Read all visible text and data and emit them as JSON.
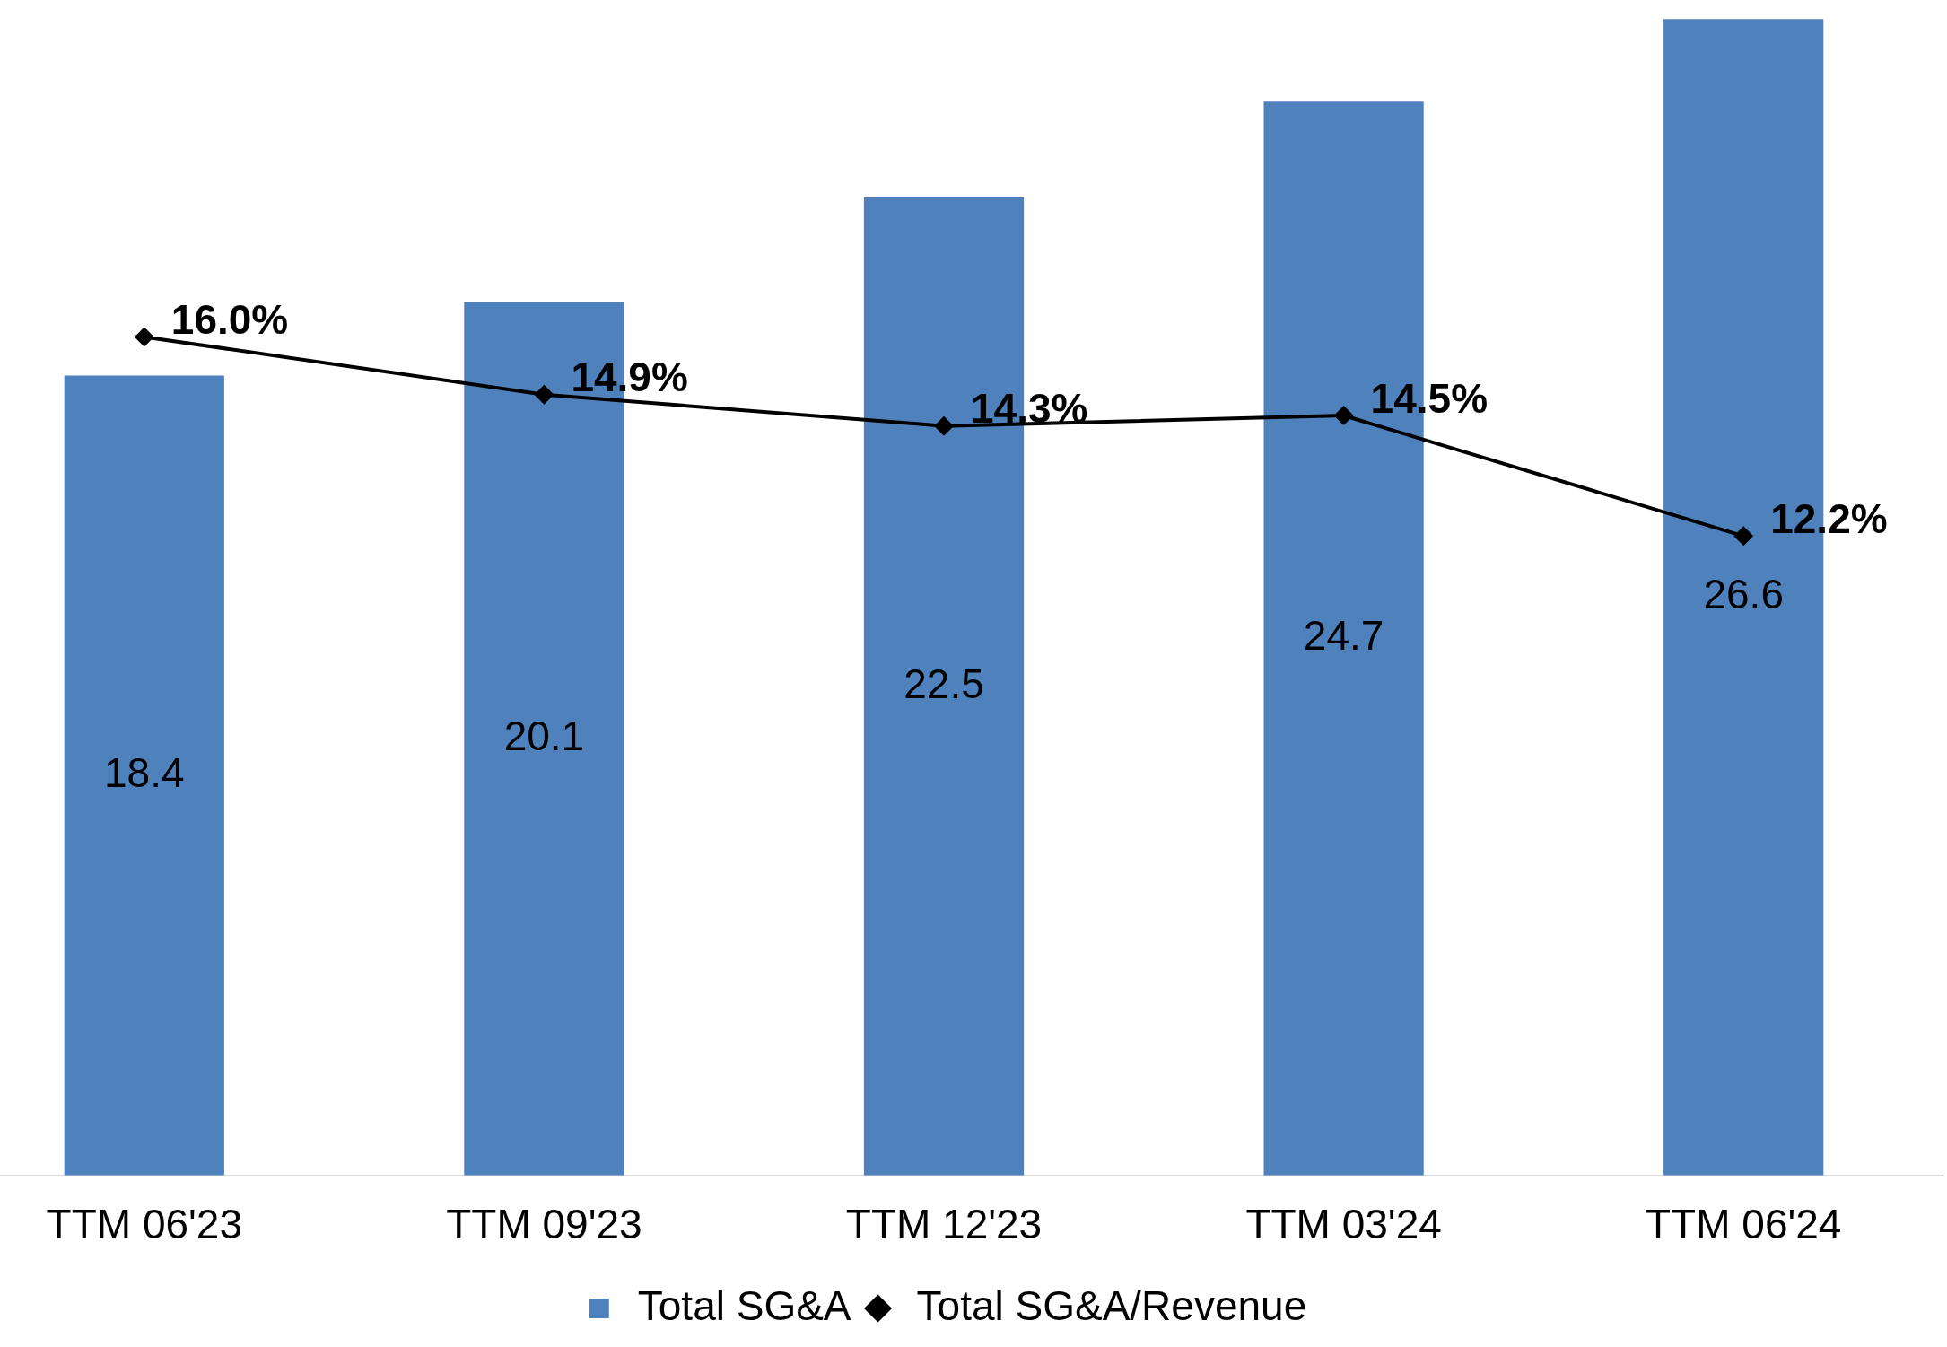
{
  "chart_data": {
    "type": "bar",
    "categories": [
      "TTM 06'23",
      "TTM 09'23",
      "TTM 12'23",
      "TTM 03'24",
      "TTM 06'24"
    ],
    "series": [
      {
        "name": "Total SG&A",
        "color": "#4f81bd",
        "values": [
          18.4,
          20.1,
          22.5,
          24.7,
          26.6
        ],
        "value_labels": [
          "18.4",
          "20.1",
          "22.5",
          "24.7",
          "26.6"
        ]
      },
      {
        "name": "Total SG&A/Revenue",
        "type": "line",
        "axis": "y2",
        "color": "#000000",
        "values": [
          16.0,
          14.9,
          14.3,
          14.5,
          12.2
        ],
        "value_labels": [
          "16.0%",
          "14.9%",
          "14.3%",
          "14.5%",
          "12.2%"
        ],
        "marker": "diamond",
        "line_style": "solid"
      }
    ],
    "legend": "bottom",
    "grid": false,
    "tick_labels": "x"
  }
}
